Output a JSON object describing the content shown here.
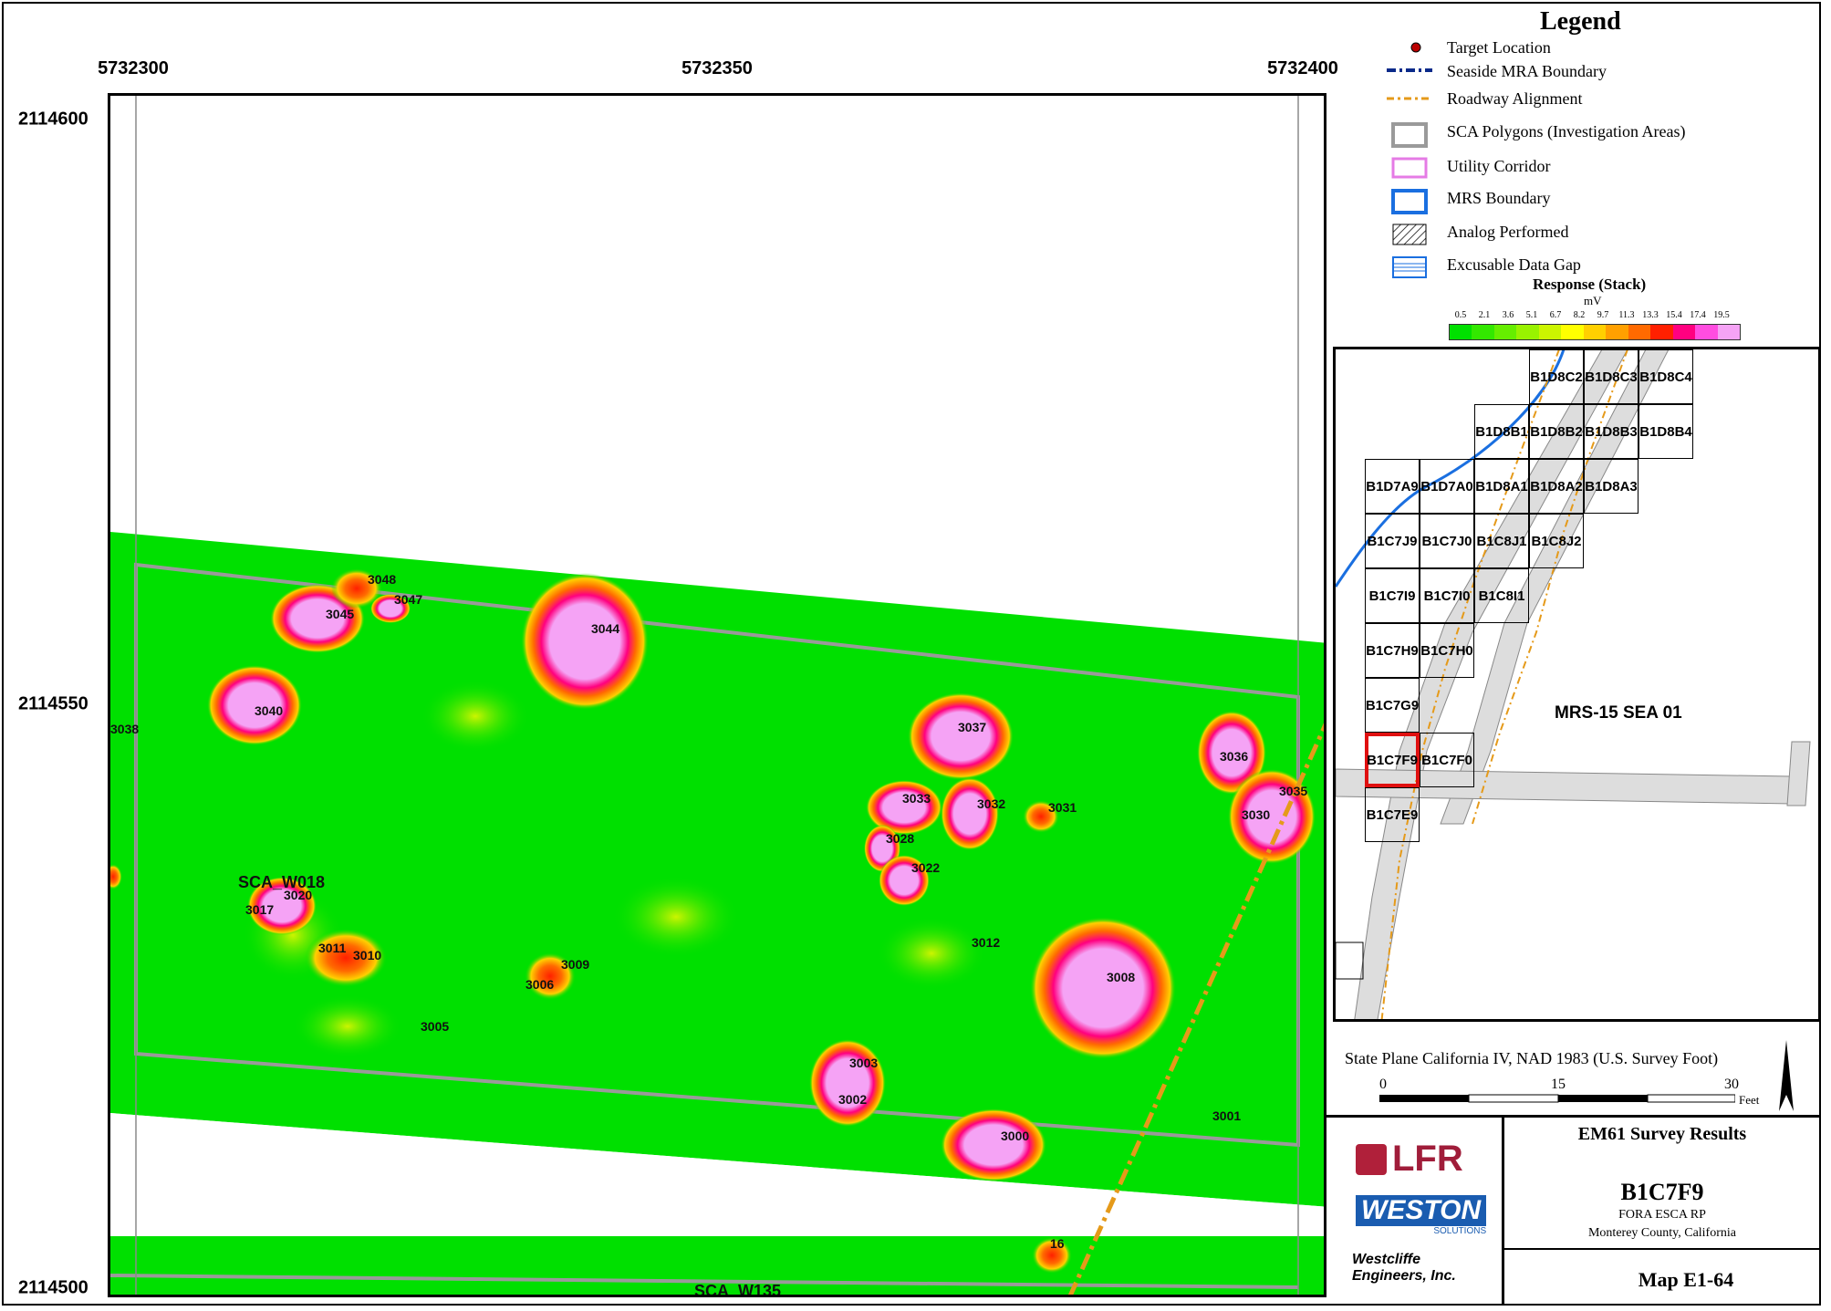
{
  "axes": {
    "x_labels": [
      "5732300",
      "5732350",
      "5732400"
    ],
    "y_labels": [
      "2114600",
      "2114550",
      "2114500"
    ]
  },
  "legend": {
    "title": "Legend",
    "items": [
      {
        "label": "Target Location",
        "icon": "target-dot-icon"
      },
      {
        "label": "Seaside MRA Boundary",
        "icon": "dash-dot-line-icon"
      },
      {
        "label": "Roadway Alignment",
        "icon": "orange-dash-line-icon"
      },
      {
        "label": "SCA Polygons (Investigation Areas)",
        "icon": "gray-box-icon"
      },
      {
        "label": "Utility Corridor",
        "icon": "pink-box-icon"
      },
      {
        "label": "MRS Boundary",
        "icon": "blue-box-icon"
      },
      {
        "label": "Analog Performed",
        "icon": "hatched-box-icon"
      },
      {
        "label": "Excusable Data Gap",
        "icon": "lined-box-icon"
      }
    ],
    "colors": {
      "mra": "#0a2a8a",
      "road": "#e59a1a",
      "sca": "#9a9a9a",
      "utility": "#e57be5",
      "mrs": "#1a6fe0"
    }
  },
  "response_scale": {
    "title": "Response (Stack)",
    "unit": "mV",
    "ticks": [
      "0.5",
      "2.1",
      "3.6",
      "5.1",
      "6.7",
      "8.2",
      "9.7",
      "11.3",
      "13.3",
      "15.4",
      "17.4",
      "19.5"
    ],
    "colors": [
      "#00e000",
      "#33e800",
      "#66ee00",
      "#99f200",
      "#ccf500",
      "#ffff00",
      "#ffd000",
      "#ffa000",
      "#ff6a00",
      "#ff2000",
      "#ff0080",
      "#ff4de0",
      "#f5a3f5"
    ]
  },
  "inset": {
    "cells": [
      "B1D8C2",
      "B1D8C3",
      "B1D8C4",
      "B1D8B1",
      "B1D8B2",
      "B1D8B3",
      "B1D8B4",
      "B1D7A9",
      "B1D7A0",
      "B1D8A1",
      "B1D8A2",
      "B1D8A3",
      "B1C7J9",
      "B1C7J0",
      "B1C8J1",
      "B1C8J2",
      "B1C7I9",
      "B1C7I0",
      "B1C8I1",
      "B1C7H9",
      "B1C7H0",
      "B1C7G9",
      "B1C7F9",
      "B1C7F0",
      "B1C7E9"
    ],
    "area_label": "MRS-15 SEA 01",
    "highlight": "B1C7F9"
  },
  "map": {
    "sca_labels": [
      "SCA_W018",
      "SCA_W135"
    ],
    "targets": [
      "3038",
      "3048",
      "3047",
      "3045",
      "3044",
      "3040",
      "3037",
      "3036",
      "3035",
      "3033",
      "3032",
      "3031",
      "3030",
      "3028",
      "3022",
      "3020",
      "3017",
      "3011",
      "3010",
      "3009",
      "3006",
      "3012",
      "3008",
      "3005",
      "3003",
      "3002",
      "3000",
      "3001",
      "16"
    ]
  },
  "projection": {
    "text": "State Plane California IV, NAD 1983 (U.S. Survey Foot)",
    "scale_ticks": [
      "0",
      "15",
      "30"
    ],
    "scale_unit": "Feet"
  },
  "title_block": {
    "logo_lfr": "LFR",
    "logo_weston": "WESTON",
    "logo_weston_sub": "SOLUTIONS",
    "company": "Westcliffe Engineers, Inc.",
    "survey_title": "EM61 Survey Results",
    "grid_id": "B1C7F9",
    "project": "FORA ESCA RP",
    "location": "Monterey County, California",
    "map_no": "Map E1-64"
  }
}
